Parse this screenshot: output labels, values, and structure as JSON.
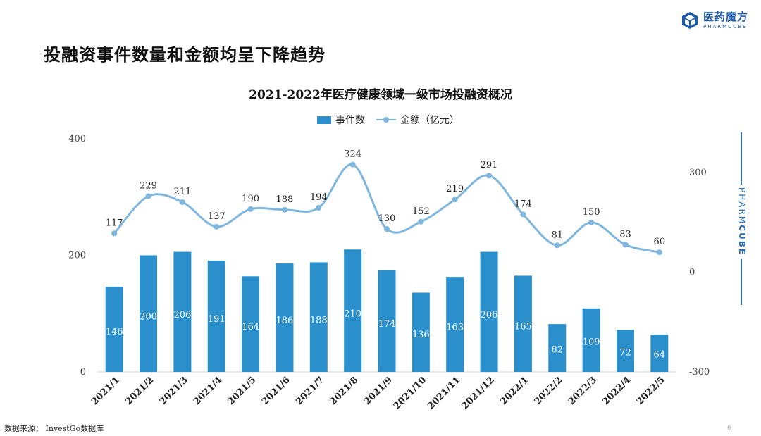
{
  "slide": {
    "title": "投融资事件数量和金额均呈下降趋势",
    "source": "数据来源： InvestGo数据库",
    "page_number": "6"
  },
  "logo": {
    "name_cn": "医药魔方",
    "name_en": "PHARMCUBE",
    "color": "#1e5aa8"
  },
  "side_brand": {
    "part1": "PHARM",
    "part2": "CUBE"
  },
  "chart_data": {
    "type": "bar",
    "title": "2021-2022年医疗健康领域一级市场投融资概况",
    "categories": [
      "2021/1",
      "2021/2",
      "2021/3",
      "2021/4",
      "2021/5",
      "2021/6",
      "2021/7",
      "2021/8",
      "2021/9",
      "2021/10",
      "2021/11",
      "2021/12",
      "2022/1",
      "2022/2",
      "2022/3",
      "2022/4",
      "2022/5"
    ],
    "series": [
      {
        "name": "事件数",
        "type": "bar",
        "axis": "left",
        "color": "#2a8fca",
        "values": [
          146,
          200,
          206,
          191,
          164,
          186,
          188,
          210,
          174,
          136,
          163,
          206,
          165,
          82,
          109,
          72,
          64
        ]
      },
      {
        "name": "金额（亿元）",
        "type": "line",
        "axis": "right",
        "color": "#7fb6de",
        "values": [
          117,
          229,
          211,
          137,
          190,
          188,
          194,
          324,
          130,
          152,
          219,
          291,
          174,
          81,
          150,
          83,
          60
        ]
      }
    ],
    "y_left": {
      "range": [
        0,
        400
      ],
      "ticks": [
        0,
        200,
        400
      ]
    },
    "y_right": {
      "range": [
        -300,
        300
      ],
      "ticks": [
        -300,
        0,
        300
      ]
    },
    "legend_position": "top"
  }
}
